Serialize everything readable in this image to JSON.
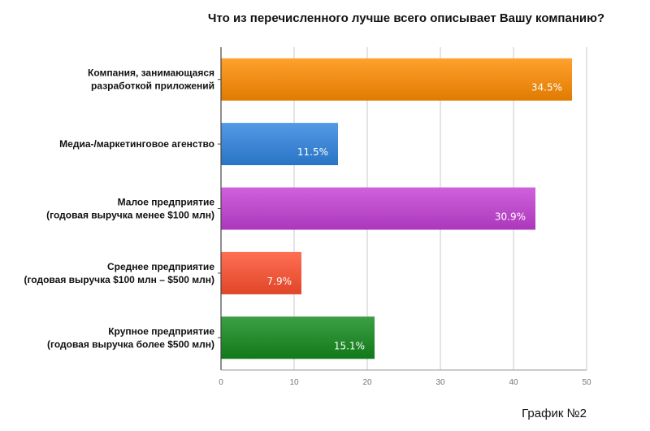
{
  "chart_data": {
    "type": "bar",
    "orientation": "horizontal",
    "title": "Что из перечисленного лучше всего описывает Вашу компанию?",
    "categories": [
      [
        "Компания, занимающаяся",
        "разработкой приложений"
      ],
      [
        "Медиа-/маркетинговое агенство"
      ],
      [
        "Малое предприятие",
        "(годовая выручка менее $100 млн)"
      ],
      [
        "Среднее предприятие",
        "(годовая выручка $100 млн – $500 млн)"
      ],
      [
        "Крупное предприятие",
        "(годовая выручка более $500 млн)"
      ]
    ],
    "values": [
      48,
      16,
      43,
      11,
      21
    ],
    "data_labels": [
      "34.5%",
      "11.5%",
      "30.9%",
      "7.9%",
      "15.1%"
    ],
    "colors": [
      "#ff8c00",
      "#2f84e0",
      "#c43fd4",
      "#ff4f2e",
      "#138a1c"
    ],
    "xlim": [
      0,
      50
    ],
    "xticks": [
      0,
      10,
      20,
      30,
      40,
      50
    ],
    "grid": true,
    "legend": "none"
  },
  "caption": "График №2"
}
